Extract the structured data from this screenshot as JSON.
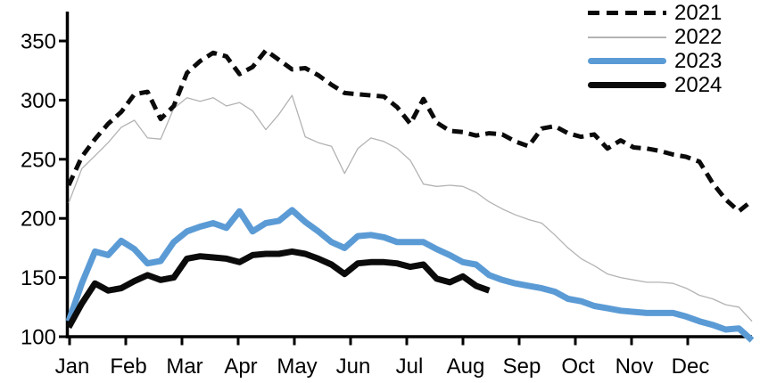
{
  "legend": {
    "items": [
      {
        "label": "2021",
        "style": "dashed-black"
      },
      {
        "label": "2022",
        "style": "thin-gray"
      },
      {
        "label": "2023",
        "style": "thick-blue"
      },
      {
        "label": "2024",
        "style": "thick-black"
      }
    ]
  },
  "colors": {
    "axis": "#000000",
    "black_line": "#0b0b0b",
    "gray_line": "#b3b3b3",
    "blue_line": "#5b9bd5"
  },
  "chart_data": {
    "type": "line",
    "title": "",
    "xlabel": "",
    "ylabel": "",
    "x_unit": "weekly",
    "categories": [
      "Jan",
      "Feb",
      "Mar",
      "Apr",
      "May",
      "Jun",
      "Jul",
      "Aug",
      "Sep",
      "Oct",
      "Nov",
      "Dec"
    ],
    "yticks": [
      100,
      150,
      200,
      250,
      300,
      350
    ],
    "ylim": [
      100,
      375
    ],
    "grid": false,
    "legend_position": "top-right",
    "series": [
      {
        "name": "2021",
        "color": "#0b0b0b",
        "width": 5,
        "dash": "12 7",
        "z": 1,
        "values": [
          228,
          252,
          267,
          280,
          290,
          305,
          307,
          284,
          295,
          323,
          333,
          340,
          337,
          322,
          328,
          342,
          334,
          326,
          327,
          321,
          313,
          306,
          305,
          304,
          303,
          294,
          280,
          301,
          281,
          274,
          273,
          270,
          272,
          271,
          265,
          261,
          276,
          278,
          272,
          269,
          271,
          259,
          266,
          260,
          259,
          257,
          254,
          252,
          248,
          230,
          216,
          206,
          215
        ]
      },
      {
        "name": "2022",
        "color": "#b3b3b3",
        "width": 1.3,
        "dash": null,
        "z": 0,
        "values": [
          213,
          242,
          253,
          264,
          277,
          283,
          268,
          267,
          293,
          302,
          299,
          302,
          295,
          298,
          291,
          275,
          288,
          304,
          269,
          264,
          261,
          238,
          259,
          268,
          265,
          259,
          249,
          229,
          227,
          228,
          227,
          222,
          214,
          208,
          203,
          199,
          196,
          186,
          175,
          166,
          160,
          153,
          150,
          148,
          146,
          146,
          145,
          141,
          135,
          132,
          127,
          125,
          113
        ]
      },
      {
        "name": "2023",
        "color": "#5b9bd5",
        "width": 7,
        "dash": null,
        "z": 2,
        "values": [
          113,
          145,
          172,
          169,
          181,
          174,
          162,
          164,
          180,
          189,
          193,
          196,
          192,
          206,
          189,
          196,
          198,
          207,
          197,
          189,
          180,
          175,
          185,
          186,
          184,
          180,
          180,
          180,
          174,
          169,
          163,
          161,
          152,
          148,
          145,
          143,
          141,
          138,
          132,
          130,
          126,
          124,
          122,
          121,
          120,
          120,
          120,
          117,
          113,
          110,
          106,
          107,
          97
        ]
      },
      {
        "name": "2024",
        "color": "#0b0b0b",
        "width": 7,
        "dash": null,
        "z": 3,
        "values": [
          108,
          128,
          145,
          139,
          141,
          147,
          152,
          148,
          150,
          166,
          168,
          167,
          166,
          163,
          169,
          170,
          170,
          172,
          170,
          166,
          161,
          153,
          162,
          163,
          163,
          162,
          159,
          161,
          149,
          146,
          151,
          143,
          139
        ]
      }
    ]
  }
}
